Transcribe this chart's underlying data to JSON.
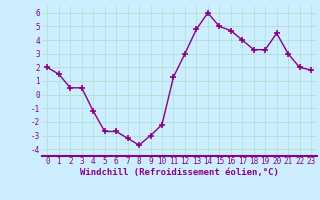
{
  "x": [
    0,
    1,
    2,
    3,
    4,
    5,
    6,
    7,
    8,
    9,
    10,
    11,
    12,
    13,
    14,
    15,
    16,
    17,
    18,
    19,
    20,
    21,
    22,
    23
  ],
  "y": [
    2.0,
    1.5,
    0.5,
    0.5,
    -1.2,
    -2.7,
    -2.7,
    -3.2,
    -3.7,
    -3.0,
    -2.2,
    1.3,
    3.0,
    4.8,
    6.0,
    5.0,
    4.7,
    4.0,
    3.3,
    3.3,
    4.5,
    3.0,
    2.0,
    1.8
  ],
  "line_color": "#880088",
  "marker": "+",
  "marker_size": 4,
  "marker_lw": 1.2,
  "line_width": 1.0,
  "bg_color": "#cceeff",
  "grid_color": "#aaddcc",
  "xlabel": "Windchill (Refroidissement éolien,°C)",
  "ylim": [
    -4.5,
    6.5
  ],
  "yticks": [
    -4,
    -3,
    -2,
    -1,
    0,
    1,
    2,
    3,
    4,
    5,
    6
  ],
  "xticks": [
    0,
    1,
    2,
    3,
    4,
    5,
    6,
    7,
    8,
    9,
    10,
    11,
    12,
    13,
    14,
    15,
    16,
    17,
    18,
    19,
    20,
    21,
    22,
    23
  ],
  "tick_color": "#880088",
  "tick_fontsize": 5.5,
  "label_fontsize": 6.5,
  "axis_bar_color": "#880088"
}
